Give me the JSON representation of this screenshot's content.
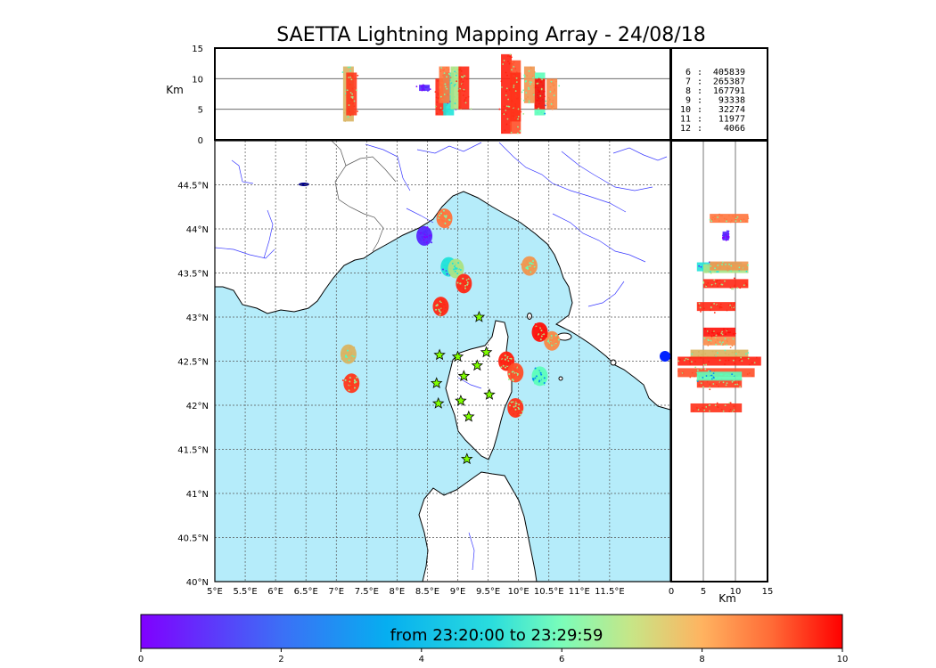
{
  "title": "SAETTA Lightning Mapping Array - 24/08/18",
  "colors": {
    "sea": "#b5ecfa",
    "land": "#ffffff",
    "coast": "#000000",
    "rivers": "#3a3aff",
    "borders": "#555555",
    "grid": "#555555",
    "highlight_stat": "#ff0000"
  },
  "map": {
    "lon_range": [
      5,
      12.5
    ],
    "lat_range": [
      40,
      45
    ],
    "lon_ticks": [
      "5°E",
      "5.5°E",
      "6°E",
      "6.5°E",
      "7°E",
      "7.5°E",
      "8°E",
      "8.5°E",
      "9°E",
      "9.5°E",
      "10°E",
      "10.5°E",
      "11°E",
      "11.5°E"
    ],
    "lat_ticks": [
      "40°N",
      "40.5°N",
      "41°N",
      "41.5°N",
      "42°N",
      "42.5°N",
      "43°N",
      "43.5°N",
      "44°N",
      "44.5°N"
    ],
    "stations": [
      [
        9.35,
        43.0
      ],
      [
        8.7,
        42.57
      ],
      [
        9.0,
        42.55
      ],
      [
        9.47,
        42.6
      ],
      [
        9.1,
        42.33
      ],
      [
        9.32,
        42.45
      ],
      [
        8.65,
        42.25
      ],
      [
        9.52,
        42.12
      ],
      [
        8.68,
        42.02
      ],
      [
        9.05,
        42.05
      ],
      [
        9.18,
        41.87
      ],
      [
        9.15,
        41.39
      ]
    ],
    "legend_stations_icon": "star-icon"
  },
  "altitude_panel": {
    "ylabel": "Km",
    "y_ticks": [
      "0",
      "5",
      "10",
      "15"
    ],
    "y_range": [
      0,
      15
    ]
  },
  "side_panel": {
    "xlabel": "Km",
    "x_ticks": [
      "0",
      "5",
      "10",
      "15"
    ],
    "x_range": [
      0,
      15
    ]
  },
  "stats": [
    {
      "label": "6",
      "value": "405839",
      "highlight": false
    },
    {
      "label": "7",
      "value": "265387",
      "highlight": true
    },
    {
      "label": "8",
      "value": "167791",
      "highlight": false
    },
    {
      "label": "9",
      "value": "93338",
      "highlight": false
    },
    {
      "label": "10",
      "value": "32274",
      "highlight": false
    },
    {
      "label": "11",
      "value": "11977",
      "highlight": false
    },
    {
      "label": "12",
      "value": "4066",
      "highlight": false
    }
  ],
  "colorbar": {
    "text": "from 23:20:00 to 23:29:59",
    "ticks": [
      "0",
      "2",
      "4",
      "6",
      "8",
      "10"
    ],
    "range": [
      0,
      10
    ]
  },
  "clusters": [
    {
      "lon": 7.2,
      "lat": 42.58,
      "t": 7.5,
      "zlo": 3,
      "zhi": 12
    },
    {
      "lon": 7.25,
      "lat": 42.25,
      "t": 9.3,
      "zlo": 4,
      "zhi": 11
    },
    {
      "lon": 8.45,
      "lat": 43.92,
      "t": 0.5,
      "zlo": 8,
      "zhi": 9
    },
    {
      "lon": 8.72,
      "lat": 43.12,
      "t": 9.5,
      "zlo": 4,
      "zhi": 10
    },
    {
      "lon": 8.85,
      "lat": 43.57,
      "t": 3.5,
      "zlo": 4,
      "zhi": 11
    },
    {
      "lon": 8.97,
      "lat": 43.55,
      "t": 6.5,
      "zlo": 5,
      "zhi": 12
    },
    {
      "lon": 9.1,
      "lat": 43.38,
      "t": 9.5,
      "zlo": 5,
      "zhi": 12
    },
    {
      "lon": 8.78,
      "lat": 44.12,
      "t": 8.5,
      "zlo": 6,
      "zhi": 12
    },
    {
      "lon": 9.8,
      "lat": 42.5,
      "t": 9.6,
      "zlo": 1,
      "zhi": 14
    },
    {
      "lon": 9.95,
      "lat": 42.37,
      "t": 9.0,
      "zlo": 1,
      "zhi": 13
    },
    {
      "lon": 10.35,
      "lat": 42.33,
      "t": 4.8,
      "zlo": 4,
      "zhi": 11
    },
    {
      "lon": 9.95,
      "lat": 41.97,
      "t": 9.4,
      "zlo": 3,
      "zhi": 11
    },
    {
      "lon": 10.55,
      "lat": 42.73,
      "t": 8.2,
      "zlo": 5,
      "zhi": 10
    },
    {
      "lon": 10.35,
      "lat": 42.83,
      "t": 9.8,
      "zlo": 5,
      "zhi": 10
    },
    {
      "lon": 10.18,
      "lat": 43.58,
      "t": 8.0,
      "zlo": 6,
      "zhi": 12
    }
  ]
}
